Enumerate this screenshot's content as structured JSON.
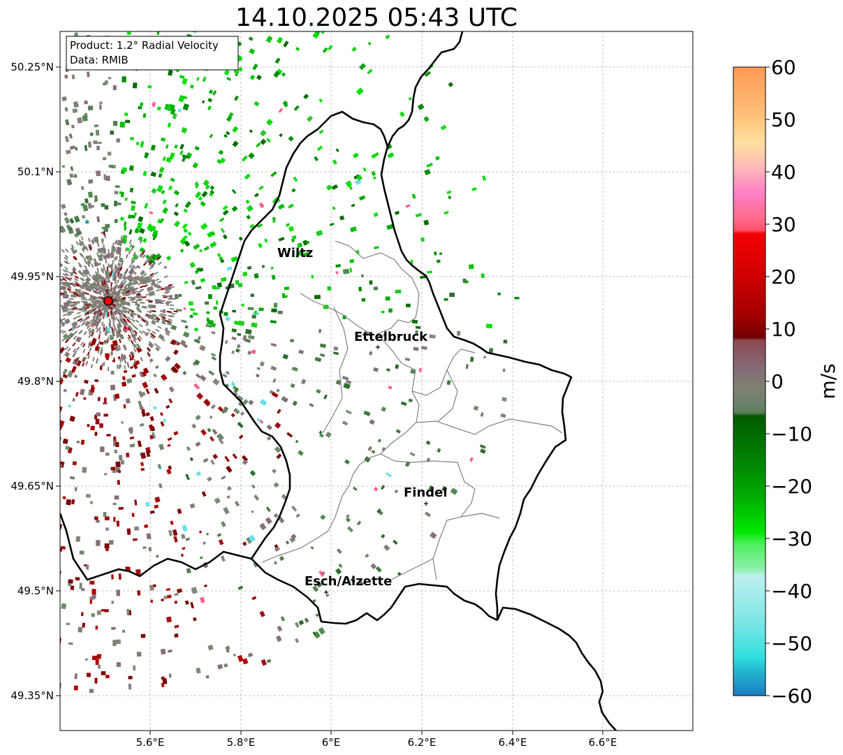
{
  "title": "14.10.2025 05:43 UTC",
  "info_box": {
    "product": "Product: 1.2° Radial Velocity",
    "data": "Data: RMIB"
  },
  "axes": {
    "x_ticks": [
      "5.6°E",
      "5.8°E",
      "6°E",
      "6.2°E",
      "6.4°E",
      "6.6°E"
    ],
    "y_ticks": [
      "50.25°N",
      "50.1°N",
      "49.95°N",
      "49.8°N",
      "49.65°N",
      "49.5°N",
      "49.35°N"
    ]
  },
  "cities": [
    {
      "name": "Wiltz"
    },
    {
      "name": "Ettelbruck"
    },
    {
      "name": "Findel"
    },
    {
      "name": "Esch/Alzette"
    }
  ],
  "colorbar": {
    "label": "m/s",
    "ticks": [
      "60",
      "50",
      "40",
      "30",
      "20",
      "10",
      "0",
      "−10",
      "−20",
      "−30",
      "−40",
      "−50",
      "−60"
    ],
    "min": -60,
    "max": 60
  },
  "colors": {
    "border": "#000000",
    "canton_lines": "#808080",
    "radar_site": "#ff0000",
    "grid": "#b0b0b0"
  }
}
